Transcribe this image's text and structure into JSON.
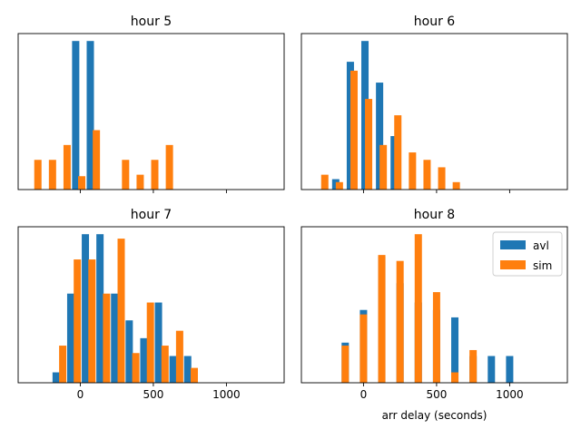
{
  "figure": {
    "xlabel": "arr delay (seconds)",
    "legend": {
      "position": "top-right",
      "entries": [
        "avl",
        "sim"
      ]
    },
    "colors": {
      "avl": "#1f77b4",
      "sim": "#ff7f0e"
    }
  },
  "chart_data": [
    {
      "type": "bar",
      "title": "hour 5",
      "xlim": [
        -425,
        1395
      ],
      "ylim": [
        0,
        1.05
      ],
      "xticks": [
        0,
        500,
        1000
      ],
      "show_xticklabels": false,
      "bin_width": 125,
      "series": [
        {
          "name": "avl",
          "bins": [
            {
              "x": -31.25,
              "v": 1.0
            },
            {
              "x": 68.75,
              "v": 1.0
            }
          ]
        },
        {
          "name": "sim",
          "bins": [
            {
              "x": -290,
              "v": 0.2
            },
            {
              "x": -190,
              "v": 0.2
            },
            {
              "x": -90,
              "v": 0.3
            },
            {
              "x": 10,
              "v": 0.09
            },
            {
              "x": 110,
              "v": 0.4
            },
            {
              "x": 310,
              "v": 0.2
            },
            {
              "x": 410,
              "v": 0.1
            },
            {
              "x": 510,
              "v": 0.2
            },
            {
              "x": 610,
              "v": 0.3
            }
          ]
        }
      ]
    },
    {
      "type": "bar",
      "title": "hour 6",
      "xlim": [
        -425,
        1395
      ],
      "ylim": [
        0,
        1.05
      ],
      "xticks": [
        0,
        500,
        1000
      ],
      "show_xticklabels": false,
      "bin_width": 125,
      "series": [
        {
          "name": "avl",
          "bins": [
            {
              "x": -190,
              "v": 0.07
            },
            {
              "x": -90,
              "v": 0.86
            },
            {
              "x": 10,
              "v": 1.0
            },
            {
              "x": 110,
              "v": 0.72
            },
            {
              "x": 210,
              "v": 0.36
            },
            {
              "x": 310,
              "v": 0.0
            }
          ]
        },
        {
          "name": "sim",
          "bins": [
            {
              "x": -265,
              "v": 0.1
            },
            {
              "x": -165,
              "v": 0.05
            },
            {
              "x": -65,
              "v": 0.8
            },
            {
              "x": 35,
              "v": 0.61
            },
            {
              "x": 135,
              "v": 0.3
            },
            {
              "x": 235,
              "v": 0.5
            },
            {
              "x": 335,
              "v": 0.25
            },
            {
              "x": 435,
              "v": 0.2
            },
            {
              "x": 535,
              "v": 0.15
            },
            {
              "x": 635,
              "v": 0.05
            }
          ]
        }
      ]
    },
    {
      "type": "bar",
      "title": "hour 7",
      "xlim": [
        -425,
        1395
      ],
      "ylim": [
        0,
        1.05
      ],
      "xticks": [
        0,
        500,
        1000
      ],
      "show_xticklabels": true,
      "bin_width": 125,
      "series": [
        {
          "name": "avl",
          "bins": [
            {
              "x": -165,
              "v": 0.07
            },
            {
              "x": -65,
              "v": 0.6
            },
            {
              "x": 35,
              "v": 1.0
            },
            {
              "x": 135,
              "v": 1.0
            },
            {
              "x": 235,
              "v": 0.6
            },
            {
              "x": 335,
              "v": 0.42
            },
            {
              "x": 435,
              "v": 0.3
            },
            {
              "x": 535,
              "v": 0.54
            },
            {
              "x": 635,
              "v": 0.18
            },
            {
              "x": 735,
              "v": 0.18
            }
          ]
        },
        {
          "name": "sim",
          "bins": [
            {
              "x": -120,
              "v": 0.25
            },
            {
              "x": -20,
              "v": 0.83
            },
            {
              "x": 80,
              "v": 0.83
            },
            {
              "x": 180,
              "v": 0.6
            },
            {
              "x": 280,
              "v": 0.97
            },
            {
              "x": 380,
              "v": 0.2
            },
            {
              "x": 480,
              "v": 0.54
            },
            {
              "x": 580,
              "v": 0.25
            },
            {
              "x": 680,
              "v": 0.35
            },
            {
              "x": 780,
              "v": 0.1
            }
          ]
        }
      ]
    },
    {
      "type": "bar",
      "title": "hour 8",
      "xlim": [
        -425,
        1395
      ],
      "ylim": [
        0,
        1.05
      ],
      "xticks": [
        0,
        500,
        1000
      ],
      "show_xticklabels": true,
      "bin_width": 125,
      "series": [
        {
          "name": "avl",
          "bins": [
            {
              "x": -125,
              "v": 0.27
            },
            {
              "x": 0,
              "v": 0.49
            },
            {
              "x": 125,
              "v": 0.85
            },
            {
              "x": 250,
              "v": 0.67
            },
            {
              "x": 375,
              "v": 0.54
            },
            {
              "x": 500,
              "v": 0.49
            },
            {
              "x": 625,
              "v": 0.44
            },
            {
              "x": 750,
              "v": 0.18
            },
            {
              "x": 875,
              "v": 0.18
            },
            {
              "x": 1000,
              "v": 0.18
            }
          ]
        },
        {
          "name": "sim",
          "bins": [
            {
              "x": -125,
              "v": 0.25
            },
            {
              "x": 0,
              "v": 0.46
            },
            {
              "x": 125,
              "v": 0.86
            },
            {
              "x": 250,
              "v": 0.82
            },
            {
              "x": 375,
              "v": 1.0
            },
            {
              "x": 500,
              "v": 0.61
            },
            {
              "x": 625,
              "v": 0.07
            },
            {
              "x": 750,
              "v": 0.22
            },
            {
              "x": 875,
              "v": 0.0
            },
            {
              "x": 1000,
              "v": 0.0
            }
          ]
        }
      ]
    }
  ]
}
